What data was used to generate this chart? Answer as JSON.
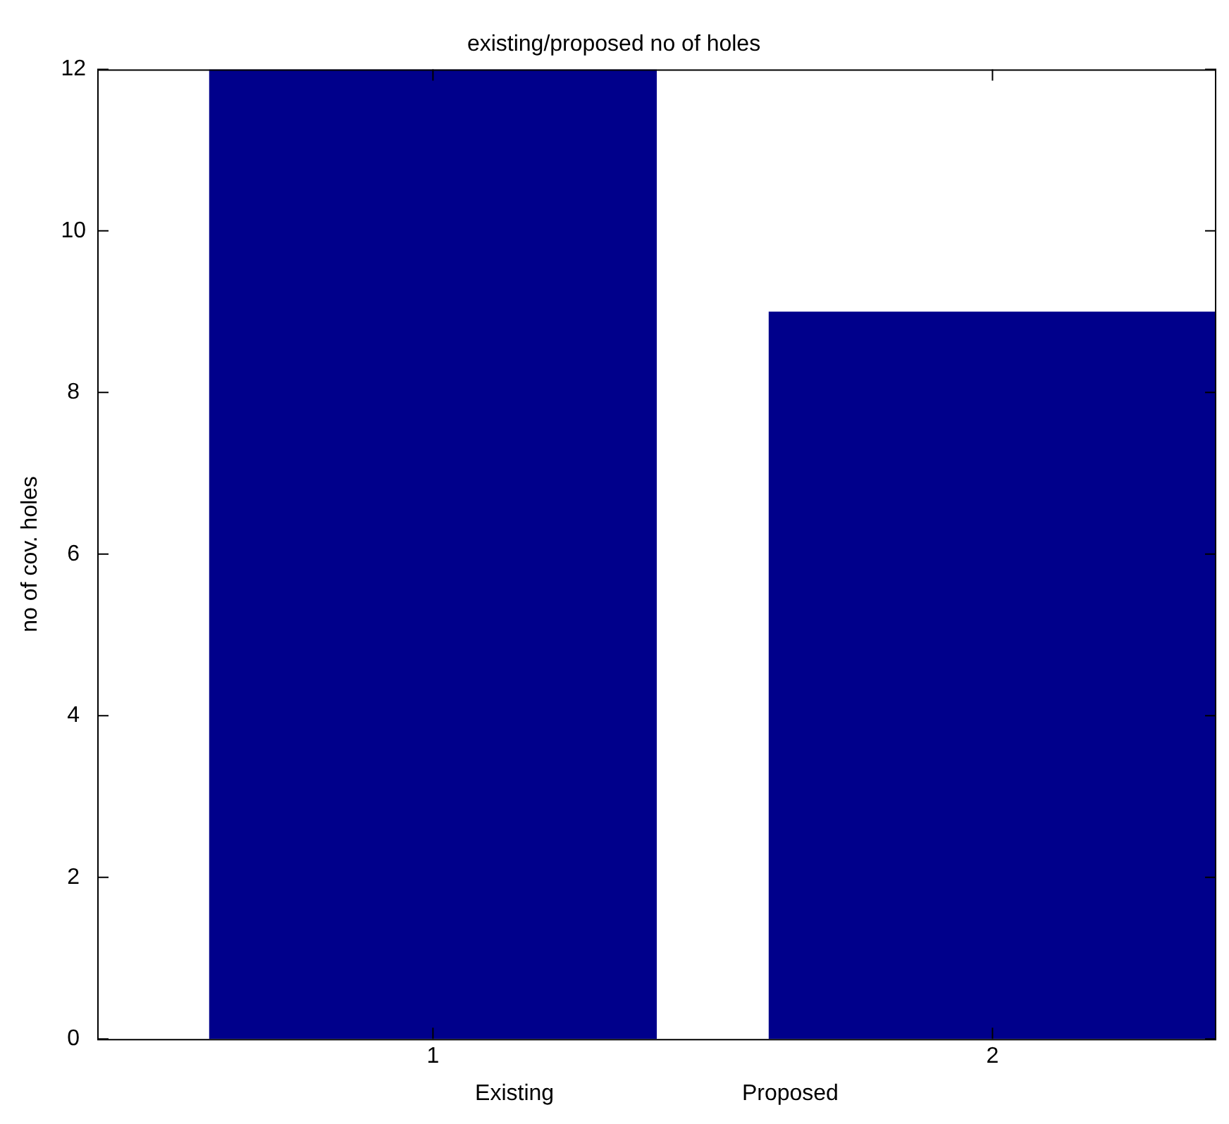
{
  "chart_data": {
    "type": "bar",
    "title": "existing/proposed no of holes",
    "xlabel": "Existing                              Proposed",
    "ylabel": "no of cov. holes",
    "x": [
      1,
      2
    ],
    "values": [
      12,
      9
    ],
    "color": "#00008b",
    "xlim": [
      0.4,
      2.4
    ],
    "xticks": [
      1,
      2
    ],
    "ylim": [
      0,
      12
    ],
    "yticks": [
      0,
      2,
      4,
      6,
      8,
      10,
      12
    ],
    "grid": false,
    "legend": false
  }
}
